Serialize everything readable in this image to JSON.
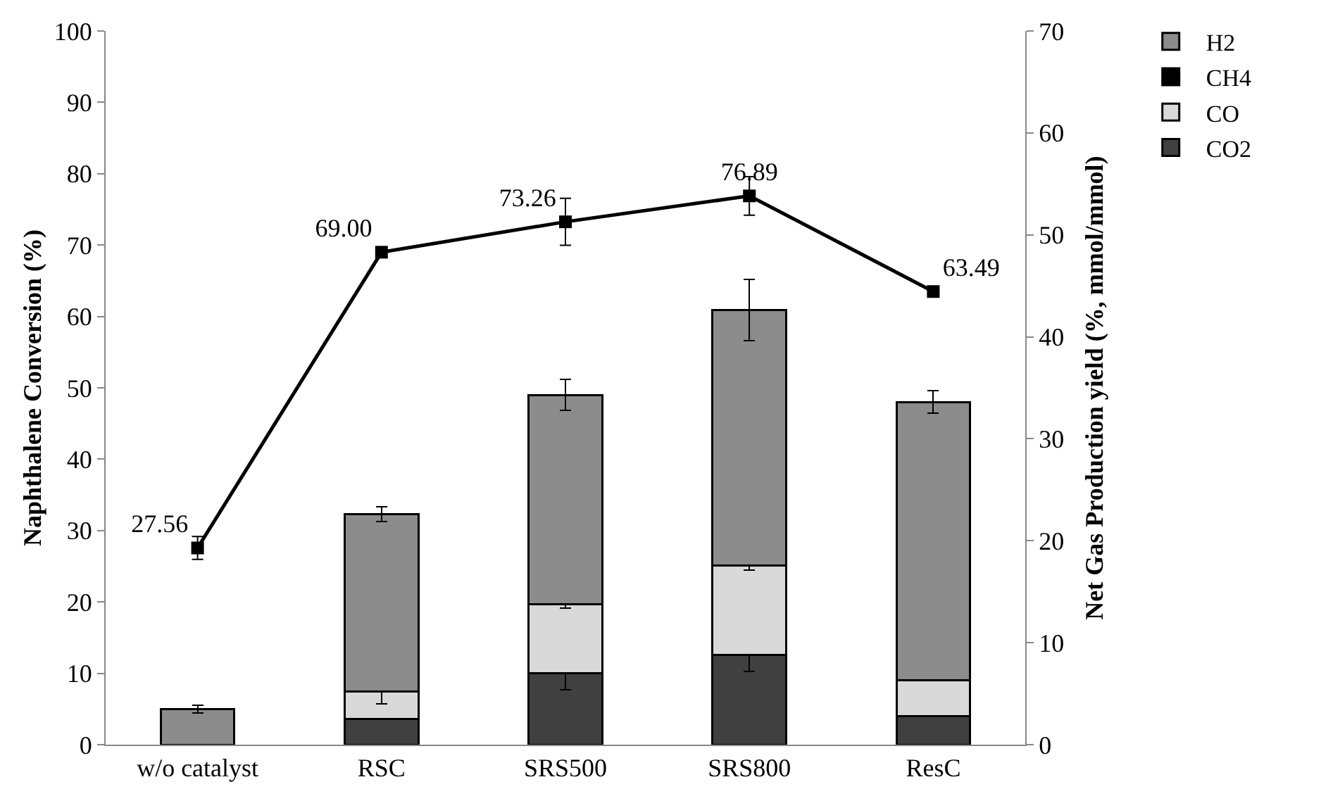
{
  "chart_data": {
    "type": "bar",
    "stacked": true,
    "categories": [
      "w/o catalyst",
      "RSC",
      "SRS500",
      "SRS800",
      "ResC"
    ],
    "ylabel": "Naphthalene Conversion (%)",
    "y2label": "Net Gas Production yield (%, mmol/mmol)",
    "ylim": [
      0,
      100
    ],
    "yticks": [
      0,
      10,
      20,
      30,
      40,
      50,
      60,
      70,
      80,
      90,
      100
    ],
    "y2lim": [
      0,
      70
    ],
    "y2ticks": [
      0,
      10,
      20,
      30,
      40,
      50,
      60,
      70
    ],
    "grid": false,
    "legend": "top right",
    "marker": "square",
    "line_style": "solid",
    "series": [
      {
        "name": "CO2",
        "color": "#404040",
        "axis": "y2",
        "values": [
          0,
          2.5,
          7,
          8.8,
          2.8
        ],
        "errors": [
          null,
          null,
          1.6,
          1.6,
          null
        ]
      },
      {
        "name": "CO",
        "color": "#d9d9d9",
        "axis": "y2",
        "values": [
          0,
          2.7,
          6.8,
          8.8,
          3.5
        ],
        "errors": [
          null,
          1.2,
          0.4,
          0.5,
          null
        ]
      },
      {
        "name": "CH4",
        "color": "#000000",
        "axis": "y2",
        "values": [
          0,
          0,
          0,
          0,
          0
        ]
      },
      {
        "name": "H2",
        "color": "#8c8c8c",
        "axis": "y2",
        "values": [
          3.5,
          17.4,
          20.5,
          25,
          27.3
        ],
        "errors": [
          0.4,
          0.7,
          1.5,
          3,
          1.1
        ]
      },
      {
        "type": "line",
        "color": "#000000",
        "values": [
          27.56,
          69.0,
          73.26,
          76.89,
          63.49
        ],
        "errors": [
          1.6,
          null,
          3.3,
          2.7,
          null
        ],
        "value_labels": [
          "27.56",
          "69.00",
          "73.26",
          "76.89",
          "63.49"
        ]
      }
    ]
  }
}
